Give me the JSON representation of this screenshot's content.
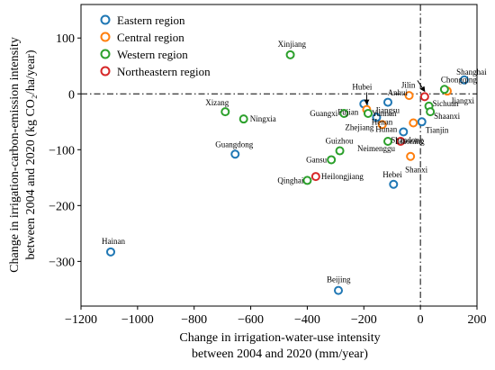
{
  "chart_data": {
    "type": "scatter",
    "xlabel_lines": [
      "Change in irrigation-water-use intensity",
      "between 2004 and 2020 (mm/year)"
    ],
    "ylabel_lines": [
      "Change in irrigation-carbon-emission intensity",
      "between 2004 and 2020 (kg CO₂/ha/year)"
    ],
    "xlim": [
      -1200,
      200
    ],
    "ylim": [
      -380,
      160
    ],
    "xticks": [
      -1200,
      -1000,
      -800,
      -600,
      -400,
      -200,
      0,
      200
    ],
    "yticks": [
      100,
      0,
      -100,
      -200,
      -300
    ],
    "xtick_labels": [
      "−1200",
      "−1000",
      "−800",
      "−600",
      "−400",
      "−200",
      "0",
      "200"
    ],
    "ytick_labels": [
      "100",
      "0",
      "−100",
      "−200",
      "−300"
    ],
    "reference_lines": {
      "x": 0,
      "y": 0,
      "style": "dash-dot"
    },
    "legend_position": "top-left",
    "series": [
      {
        "name": "Eastern region",
        "color": "#1f77b4",
        "points": [
          {
            "label": "Shanghai",
            "x": 155,
            "y": 25
          },
          {
            "label": "Jiangsu",
            "x": -115,
            "y": -15
          },
          {
            "label": "Fujian",
            "x": -200,
            "y": -18
          },
          {
            "label": "Zhejiang",
            "x": -155,
            "y": -42
          },
          {
            "label": "Tianjin",
            "x": 5,
            "y": -50
          },
          {
            "label": "Shandong",
            "x": -60,
            "y": -68
          },
          {
            "label": "Hebei",
            "x": -95,
            "y": -162
          },
          {
            "label": "Guangdong",
            "x": -655,
            "y": -108
          },
          {
            "label": "Hainan",
            "x": -1095,
            "y": -283
          },
          {
            "label": "Beijing",
            "x": -290,
            "y": -352
          }
        ]
      },
      {
        "name": "Central region",
        "color": "#ff7f0e",
        "points": [
          {
            "label": "Jiangxi",
            "x": 95,
            "y": 5
          },
          {
            "label": "Anhui",
            "x": -40,
            "y": -3
          },
          {
            "label": "Hubei",
            "x": -190,
            "y": -28
          },
          {
            "label": "Henan",
            "x": -135,
            "y": -55
          },
          {
            "label": "Shanxi",
            "x": -35,
            "y": -112
          },
          {
            "label": "Hunan",
            "x": -25,
            "y": -52
          }
        ]
      },
      {
        "name": "Western region",
        "color": "#2ca02c",
        "points": [
          {
            "label": "Xinjiang",
            "x": -460,
            "y": 70
          },
          {
            "label": "Chongqing",
            "x": 85,
            "y": 8
          },
          {
            "label": "Sichuan",
            "x": 30,
            "y": -22
          },
          {
            "label": "Shaanxi",
            "x": 35,
            "y": -32
          },
          {
            "label": "Xizang",
            "x": -690,
            "y": -32
          },
          {
            "label": "Ningxia",
            "x": -625,
            "y": -45
          },
          {
            "label": "Guangxi",
            "x": -270,
            "y": -35
          },
          {
            "label": "Yunnan",
            "x": -185,
            "y": -35
          },
          {
            "label": "Neimenggu",
            "x": -115,
            "y": -85
          },
          {
            "label": "Guizhou",
            "x": -285,
            "y": -102
          },
          {
            "label": "Gansu",
            "x": -315,
            "y": -118
          },
          {
            "label": "Qinghai",
            "x": -400,
            "y": -155
          }
        ]
      },
      {
        "name": "Northeastern region",
        "color": "#d62728",
        "points": [
          {
            "label": "Jilin",
            "x": 15,
            "y": -5
          },
          {
            "label": "Liaoning",
            "x": -70,
            "y": -85
          },
          {
            "label": "Heilongjiang",
            "x": -370,
            "y": -148
          }
        ]
      }
    ]
  }
}
